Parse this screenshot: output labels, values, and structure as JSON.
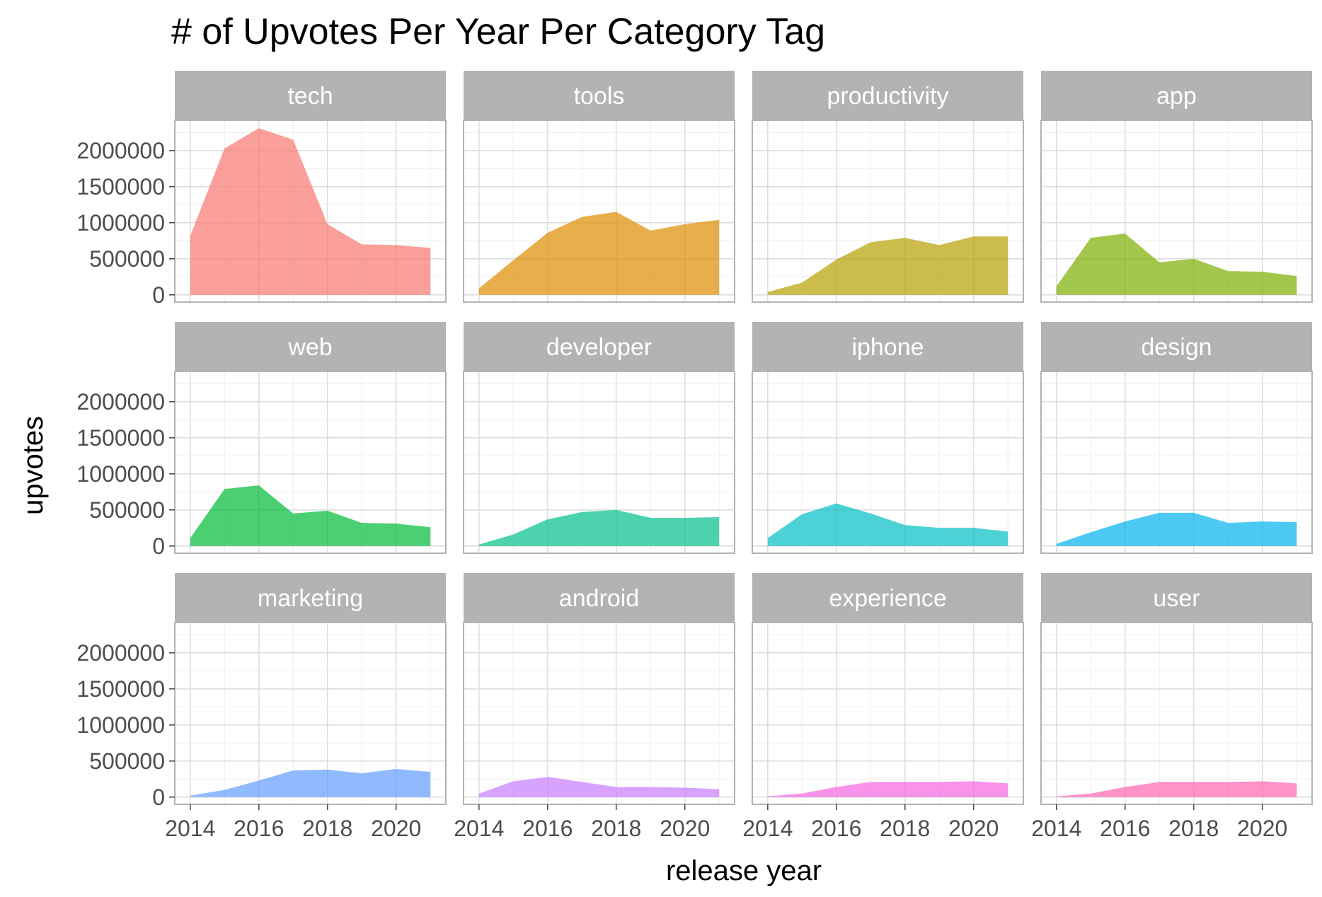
{
  "chart_data": {
    "type": "area",
    "title": "# of Upvotes Per Year Per Category Tag",
    "xlabel": "release year",
    "ylabel": "upvotes",
    "x": [
      2014,
      2015,
      2016,
      2017,
      2018,
      2019,
      2020,
      2021
    ],
    "xlim": [
      2013.55,
      2021.45
    ],
    "ylim": [
      -100000,
      2420000
    ],
    "x_ticks": [
      2014,
      2016,
      2018,
      2020
    ],
    "x_tick_labels": [
      "2014",
      "2016",
      "2018",
      "2020"
    ],
    "y_ticks": [
      0,
      500000,
      1000000,
      1500000,
      2000000
    ],
    "y_tick_labels": [
      "0",
      "500000",
      "1000000",
      "1500000",
      "2000000"
    ],
    "grid": true,
    "legend": "none",
    "facets": [
      "tech",
      "tools",
      "productivity",
      "app",
      "web",
      "developer",
      "iphone",
      "design",
      "marketing",
      "android",
      "experience",
      "user"
    ],
    "series": [
      {
        "name": "tech",
        "color": "#F8766D",
        "values": [
          820000,
          2030000,
          2310000,
          2150000,
          980000,
          700000,
          690000,
          650000
        ]
      },
      {
        "name": "tools",
        "color": "#DE8C00",
        "values": [
          90000,
          480000,
          860000,
          1080000,
          1150000,
          890000,
          980000,
          1040000
        ]
      },
      {
        "name": "productivity",
        "color": "#B79F00",
        "values": [
          40000,
          170000,
          490000,
          730000,
          790000,
          690000,
          810000,
          810000
        ]
      },
      {
        "name": "app",
        "color": "#7CAE00",
        "values": [
          120000,
          790000,
          850000,
          450000,
          500000,
          330000,
          320000,
          260000
        ]
      },
      {
        "name": "web",
        "color": "#00BA38",
        "values": [
          110000,
          790000,
          840000,
          450000,
          490000,
          320000,
          310000,
          260000
        ]
      },
      {
        "name": "developer",
        "color": "#00C08B",
        "values": [
          20000,
          160000,
          370000,
          470000,
          500000,
          390000,
          390000,
          400000
        ]
      },
      {
        "name": "iphone",
        "color": "#00BFC4",
        "values": [
          110000,
          440000,
          590000,
          450000,
          290000,
          250000,
          250000,
          200000
        ]
      },
      {
        "name": "design",
        "color": "#00B4F0",
        "values": [
          30000,
          190000,
          340000,
          460000,
          460000,
          320000,
          340000,
          330000
        ]
      },
      {
        "name": "marketing",
        "color": "#619CFF",
        "values": [
          20000,
          100000,
          230000,
          370000,
          380000,
          330000,
          390000,
          350000
        ]
      },
      {
        "name": "android",
        "color": "#C77CFF",
        "values": [
          50000,
          220000,
          280000,
          210000,
          140000,
          140000,
          130000,
          110000
        ]
      },
      {
        "name": "experience",
        "color": "#F564E3",
        "values": [
          10000,
          50000,
          140000,
          210000,
          210000,
          210000,
          220000,
          190000
        ]
      },
      {
        "name": "user",
        "color": "#FF64B0",
        "values": [
          10000,
          50000,
          140000,
          210000,
          210000,
          210000,
          220000,
          190000
        ]
      }
    ]
  }
}
